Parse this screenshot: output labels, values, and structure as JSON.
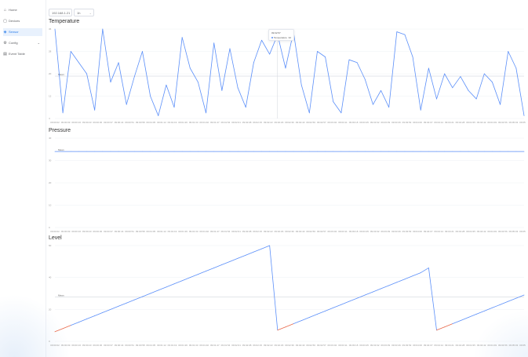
{
  "sidebar": {
    "items": [
      {
        "label": "Home",
        "icon": "home-icon",
        "glyph": "⌂"
      },
      {
        "label": "Devices",
        "icon": "device-icon",
        "glyph": "▢"
      },
      {
        "label": "Sensor",
        "icon": "sensor-icon",
        "glyph": "◈",
        "active": true
      },
      {
        "label": "Config",
        "icon": "gear-icon",
        "glyph": "⚙",
        "expandable": true
      },
      {
        "label": "Event Table",
        "icon": "table-icon",
        "glyph": "▤"
      }
    ]
  },
  "toolbar": {
    "device_select": "192.168.1.21",
    "range_select": "1h"
  },
  "colors": {
    "line": "#5b8ff9",
    "line_low": "#e8684a",
    "accent": "#2b7de9"
  },
  "charts": {
    "temperature": {
      "title": "Temperature",
      "mark_label": "Mean",
      "y_ticks": [
        "36",
        "28",
        "20",
        "12",
        "4"
      ],
      "x_ticks": [
        "09:00:02",
        "09:00:09",
        "09:00:16",
        "09:00:23",
        "09:00:30",
        "09:00:37",
        "09:00:44",
        "09:00:51",
        "09:00:58",
        "09:01:05",
        "09:01:12",
        "09:01:19",
        "09:01:26",
        "09:01:33",
        "09:01:40",
        "09:01:47",
        "09:01:54",
        "09:02:01",
        "09:02:08",
        "09:02:15",
        "09:02:22",
        "09:02:29",
        "09:02:36",
        "09:02:43",
        "09:02:50",
        "09:02:57",
        "09:03:04",
        "09:03:11",
        "09:03:18",
        "09:03:25",
        "09:03:32",
        "09:03:39",
        "09:03:46",
        "09:03:53",
        "09:04:00",
        "09:04:07",
        "09:04:14",
        "09:04:21",
        "09:04:28",
        "09:04:35",
        "09:04:42",
        "09:04:49",
        "09:04:56",
        "09:05:03",
        "09:05:10"
      ]
    },
    "pressure": {
      "title": "Pressure",
      "mark_label": "Mean",
      "y_ticks": [
        "40",
        "30",
        "20",
        "10",
        "0"
      ],
      "x_ticks": [
        "09:00:02",
        "09:00:09",
        "09:00:16",
        "09:00:23",
        "09:00:30",
        "09:00:37",
        "09:00:44",
        "09:00:51",
        "09:00:58",
        "09:01:05",
        "09:01:12",
        "09:01:19",
        "09:01:26",
        "09:01:33",
        "09:01:40",
        "09:01:47",
        "09:01:54",
        "09:02:01",
        "09:02:08",
        "09:02:15",
        "09:02:22",
        "09:02:29",
        "09:02:36",
        "09:02:43",
        "09:02:50",
        "09:02:57",
        "09:03:04",
        "09:03:11",
        "09:03:18",
        "09:03:25",
        "09:03:32",
        "09:03:39",
        "09:03:46",
        "09:03:53",
        "09:04:00",
        "09:04:07",
        "09:04:14",
        "09:04:21",
        "09:04:28",
        "09:04:35",
        "09:04:42",
        "09:04:49",
        "09:04:56",
        "09:05:03",
        "09:05:10"
      ]
    },
    "level": {
      "title": "Level",
      "mark_label": "Mean",
      "y_ticks": [
        "60",
        "40",
        "20",
        "0"
      ],
      "x_ticks": [
        "09:00:02",
        "09:00:09",
        "09:00:16",
        "09:00:23",
        "09:00:30",
        "09:00:37",
        "09:00:44",
        "09:00:51",
        "09:00:58",
        "09:01:05",
        "09:01:12",
        "09:01:19",
        "09:01:26",
        "09:01:33",
        "09:01:40",
        "09:01:47",
        "09:01:54",
        "09:02:01",
        "09:02:08",
        "09:02:15",
        "09:02:22",
        "09:02:29",
        "09:02:36",
        "09:02:43",
        "09:02:50",
        "09:02:57",
        "09:03:04",
        "09:03:11",
        "09:03:18",
        "09:03:25",
        "09:03:32",
        "09:03:39",
        "09:03:46",
        "09:03:53",
        "09:04:00",
        "09:04:07",
        "09:04:14",
        "09:04:21",
        "09:04:28",
        "09:04:35",
        "09:04:42",
        "09:04:49",
        "09:04:56",
        "09:05:03",
        "09:05:10"
      ]
    }
  },
  "tooltip": {
    "time": "09:02:57",
    "series": "Temperature",
    "value": "32"
  },
  "chart_data": [
    {
      "type": "line",
      "title": "Temperature",
      "ylim": [
        4,
        36
      ],
      "series": [
        {
          "name": "Temperature",
          "values": [
            36,
            6,
            28,
            24,
            20,
            7,
            36,
            17,
            24,
            9,
            19,
            28,
            12,
            5,
            16,
            8,
            33,
            22,
            17,
            6,
            31,
            14,
            29,
            15,
            8,
            24,
            32,
            27,
            34,
            22,
            35,
            16,
            6,
            28,
            26,
            10,
            6,
            25,
            24,
            18,
            9,
            14,
            8,
            35,
            34,
            26,
            7,
            22,
            11,
            20,
            15,
            19,
            14,
            11,
            20,
            17,
            9,
            28,
            22,
            5
          ]
        }
      ]
    },
    {
      "type": "line",
      "title": "Pressure",
      "ylim": [
        0,
        40
      ],
      "series": [
        {
          "name": "Pressure",
          "values": [
            34,
            34,
            34,
            34,
            34,
            34,
            34,
            34,
            34,
            34,
            34,
            34,
            34,
            34,
            34,
            34,
            34,
            34,
            34,
            34,
            34,
            34,
            34,
            34,
            34,
            34,
            34,
            34,
            34,
            34,
            34,
            34,
            34,
            34,
            34,
            34,
            34,
            34,
            34,
            34,
            34,
            34,
            34,
            34,
            34,
            34,
            34,
            34,
            34,
            34,
            34,
            34,
            34,
            34,
            34,
            34,
            34,
            34,
            34,
            34
          ]
        }
      ]
    },
    {
      "type": "line",
      "title": "Level",
      "ylim": [
        0,
        60
      ],
      "series": [
        {
          "name": "Level",
          "values": [
            6,
            8,
            10,
            12,
            14,
            16,
            18,
            20,
            22,
            24,
            26,
            28,
            30,
            32,
            34,
            36,
            38,
            40,
            42,
            44,
            46,
            48,
            50,
            52,
            54,
            56,
            58,
            60,
            7,
            9,
            11,
            13,
            15,
            17,
            19,
            21,
            23,
            25,
            27,
            29,
            31,
            33,
            35,
            37,
            39,
            41,
            43,
            46,
            7,
            9,
            11,
            13,
            15,
            17,
            19,
            21,
            23,
            25,
            27,
            29
          ]
        }
      ]
    }
  ]
}
